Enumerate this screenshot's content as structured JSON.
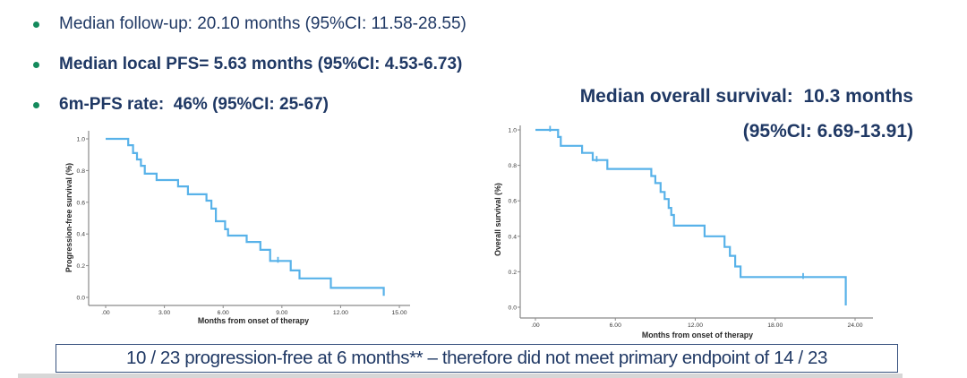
{
  "colors": {
    "navy": "#1f3864",
    "bullet_green": "#148a5c",
    "curve_blue": "#58b2e9",
    "axis_gray": "#8a8a8a",
    "tick_text": "#3a3a3a",
    "axis_title_text": "#262626",
    "footer_border": "#37517e"
  },
  "bullets": [
    {
      "text": "Median follow-up: 20.10 months (95%CI: 11.58-28.55)",
      "bold": false
    },
    {
      "text": "Median local PFS= 5.63 months (95%CI: 4.53-6.73)",
      "bold": true
    },
    {
      "text": "6m-PFS rate:  46% (95%CI: 25-67)",
      "bold": true
    }
  ],
  "os_title": {
    "line1": "Median overall survival:  10.3 months",
    "line2": "(95%CI: 6.69-13.91)"
  },
  "footer": {
    "text": "10 / 23 progression-free at 6 months** – therefore did not meet primary endpoint of 14 / 23"
  },
  "chart_data": [
    {
      "type": "line",
      "subtype": "kaplan-meier-step",
      "title": "",
      "xlabel": "Months from onset of therapy",
      "ylabel": "Progression-free survival (%)",
      "xlim": [
        0,
        15
      ],
      "ylim": [
        0,
        1
      ],
      "grid": false,
      "legend": "none",
      "xticks": {
        "labels": [
          ".00",
          "3.00",
          "6.00",
          "9.00",
          "12.00",
          "15.00"
        ],
        "values": [
          0,
          3,
          6,
          9,
          12,
          15
        ]
      },
      "yticks": {
        "labels": [
          "0.0",
          "0.2",
          "0.4",
          "0.6",
          "0.8",
          "1.0"
        ],
        "values": [
          0,
          0.2,
          0.4,
          0.6,
          0.8,
          1.0
        ]
      },
      "start": [
        0,
        1.0
      ],
      "steps": [
        [
          1.15,
          0.96
        ],
        [
          1.4,
          0.91
        ],
        [
          1.6,
          0.87
        ],
        [
          1.8,
          0.83
        ],
        [
          2.0,
          0.78
        ],
        [
          2.6,
          0.74
        ],
        [
          3.7,
          0.7
        ],
        [
          4.2,
          0.65
        ],
        [
          5.15,
          0.61
        ],
        [
          5.4,
          0.56
        ],
        [
          5.63,
          0.48
        ],
        [
          6.1,
          0.43
        ],
        [
          6.25,
          0.39
        ],
        [
          7.2,
          0.35
        ],
        [
          7.9,
          0.3
        ],
        [
          8.4,
          0.23
        ],
        [
          9.45,
          0.17
        ],
        [
          9.9,
          0.12
        ],
        [
          11.5,
          0.06
        ],
        [
          14.2,
          0.01
        ]
      ],
      "censor_marks": [
        [
          8.8,
          0.23
        ]
      ]
    },
    {
      "type": "line",
      "subtype": "kaplan-meier-step",
      "title": "",
      "xlabel": "Months from onset of therapy",
      "ylabel": "Overall survival (%)",
      "xlim": [
        0,
        24
      ],
      "ylim": [
        0,
        1
      ],
      "grid": false,
      "legend": "none",
      "xticks": {
        "labels": [
          ".00",
          "6.00",
          "12.00",
          "18.00",
          "24.00"
        ],
        "values": [
          0,
          6,
          12,
          18,
          24
        ]
      },
      "yticks": {
        "labels": [
          "0.0",
          "0.2",
          "0.4",
          "0.6",
          "0.8",
          "1.0"
        ],
        "values": [
          0,
          0.2,
          0.4,
          0.6,
          0.8,
          1.0
        ]
      },
      "start": [
        0,
        1.0
      ],
      "steps": [
        [
          1.7,
          0.96
        ],
        [
          1.9,
          0.91
        ],
        [
          3.5,
          0.87
        ],
        [
          4.3,
          0.83
        ],
        [
          5.4,
          0.78
        ],
        [
          8.7,
          0.74
        ],
        [
          9.0,
          0.7
        ],
        [
          9.4,
          0.65
        ],
        [
          9.7,
          0.61
        ],
        [
          10.0,
          0.56
        ],
        [
          10.2,
          0.52
        ],
        [
          10.4,
          0.46
        ],
        [
          12.7,
          0.4
        ],
        [
          14.2,
          0.34
        ],
        [
          14.6,
          0.29
        ],
        [
          15.0,
          0.23
        ],
        [
          15.4,
          0.17
        ],
        [
          23.3,
          0.01
        ]
      ],
      "censor_marks": [
        [
          1.1,
          1.0
        ],
        [
          4.6,
          0.83
        ],
        [
          20.1,
          0.17
        ]
      ]
    }
  ]
}
